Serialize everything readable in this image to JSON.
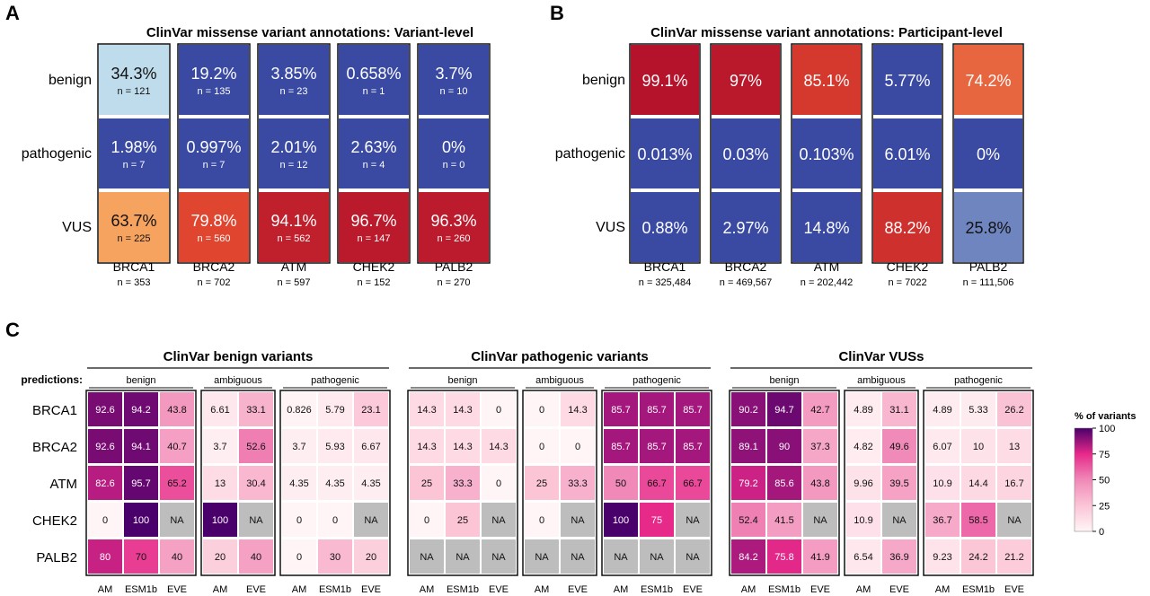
{
  "panel_a": {
    "letter": "A",
    "title": "ClinVar missense variant annotations: Variant-level",
    "rows": [
      "benign",
      "pathogenic",
      "VUS"
    ],
    "genes": [
      {
        "name": "BRCA1",
        "n": "n = 353",
        "cells": [
          {
            "pct": "34.3%",
            "n": "n = 121"
          },
          {
            "pct": "1.98%",
            "n": "n = 7"
          },
          {
            "pct": "63.7%",
            "n": "n = 225"
          }
        ]
      },
      {
        "name": "BRCA2",
        "n": "n = 702",
        "cells": [
          {
            "pct": "19.2%",
            "n": "n = 135"
          },
          {
            "pct": "0.997%",
            "n": "n = 7"
          },
          {
            "pct": "79.8%",
            "n": "n = 560"
          }
        ]
      },
      {
        "name": "ATM",
        "n": "n = 597",
        "cells": [
          {
            "pct": "3.85%",
            "n": "n = 23"
          },
          {
            "pct": "2.01%",
            "n": "n = 12"
          },
          {
            "pct": "94.1%",
            "n": "n = 562"
          }
        ]
      },
      {
        "name": "CHEK2",
        "n": "n = 152",
        "cells": [
          {
            "pct": "0.658%",
            "n": "n = 1"
          },
          {
            "pct": "2.63%",
            "n": "n = 4"
          },
          {
            "pct": "96.7%",
            "n": "n = 147"
          }
        ]
      },
      {
        "name": "PALB2",
        "n": "n = 270",
        "cells": [
          {
            "pct": "3.7%",
            "n": "n = 10"
          },
          {
            "pct": "0%",
            "n": "n = 0"
          },
          {
            "pct": "96.3%",
            "n": "n = 260"
          }
        ]
      }
    ]
  },
  "panel_b": {
    "letter": "B",
    "title": "ClinVar missense variant annotations: Participant-level",
    "rows": [
      "benign",
      "pathogenic",
      "VUS"
    ],
    "genes": [
      {
        "name": "BRCA1",
        "n": "n = 325,484",
        "cells": [
          {
            "pct": "99.1%"
          },
          {
            "pct": "0.013%"
          },
          {
            "pct": "0.88%"
          }
        ]
      },
      {
        "name": "BRCA2",
        "n": "n = 469,567",
        "cells": [
          {
            "pct": "97%"
          },
          {
            "pct": "0.03%"
          },
          {
            "pct": "2.97%"
          }
        ]
      },
      {
        "name": "ATM",
        "n": "n = 202,442",
        "cells": [
          {
            "pct": "85.1%"
          },
          {
            "pct": "0.103%"
          },
          {
            "pct": "14.8%"
          }
        ]
      },
      {
        "name": "CHEK2",
        "n": "n = 7022",
        "cells": [
          {
            "pct": "5.77%"
          },
          {
            "pct": "6.01%"
          },
          {
            "pct": "88.2%"
          }
        ]
      },
      {
        "name": "PALB2",
        "n": "n = 111,506",
        "cells": [
          {
            "pct": "74.2%"
          },
          {
            "pct": "0%"
          },
          {
            "pct": "25.8%"
          }
        ]
      }
    ]
  },
  "panel_c": {
    "letter": "C",
    "predictions_label": "predictions:",
    "genes": [
      "BRCA1",
      "BRCA2",
      "ATM",
      "CHEK2",
      "PALB2"
    ],
    "legend_title": "% of variants",
    "legend_ticks": [
      "100",
      "75",
      "50",
      "25",
      "0"
    ],
    "groups": [
      {
        "title": "ClinVar benign variants",
        "blocks": [
          {
            "label": "benign",
            "cols": [
              "AM",
              "ESM1b",
              "EVE"
            ],
            "values": [
              [
                "92.6",
                "94.2",
                "43.8"
              ],
              [
                "92.6",
                "94.1",
                "40.7"
              ],
              [
                "82.6",
                "95.7",
                "65.2"
              ],
              [
                "0",
                "100",
                "NA"
              ],
              [
                "80",
                "70",
                "40"
              ]
            ]
          },
          {
            "label": "ambiguous",
            "cols": [
              "AM",
              "EVE"
            ],
            "values": [
              [
                "6.61",
                "33.1"
              ],
              [
                "3.7",
                "52.6"
              ],
              [
                "13",
                "30.4"
              ],
              [
                "100",
                "NA"
              ],
              [
                "20",
                "40"
              ]
            ]
          },
          {
            "label": "pathogenic",
            "cols": [
              "AM",
              "ESM1b",
              "EVE"
            ],
            "values": [
              [
                "0.826",
                "5.79",
                "23.1"
              ],
              [
                "3.7",
                "5.93",
                "6.67"
              ],
              [
                "4.35",
                "4.35",
                "4.35"
              ],
              [
                "0",
                "0",
                "NA"
              ],
              [
                "0",
                "30",
                "20"
              ]
            ]
          }
        ]
      },
      {
        "title": "ClinVar pathogenic variants",
        "blocks": [
          {
            "label": "benign",
            "cols": [
              "AM",
              "ESM1b",
              "EVE"
            ],
            "values": [
              [
                "14.3",
                "14.3",
                "0"
              ],
              [
                "14.3",
                "14.3",
                "14.3"
              ],
              [
                "25",
                "33.3",
                "0"
              ],
              [
                "0",
                "25",
                "NA"
              ],
              [
                "NA",
                "NA",
                "NA"
              ]
            ]
          },
          {
            "label": "ambiguous",
            "cols": [
              "AM",
              "EVE"
            ],
            "values": [
              [
                "0",
                "14.3"
              ],
              [
                "0",
                "0"
              ],
              [
                "25",
                "33.3"
              ],
              [
                "0",
                "NA"
              ],
              [
                "NA",
                "NA"
              ]
            ]
          },
          {
            "label": "pathogenic",
            "cols": [
              "AM",
              "ESM1b",
              "EVE"
            ],
            "values": [
              [
                "85.7",
                "85.7",
                "85.7"
              ],
              [
                "85.7",
                "85.7",
                "85.7"
              ],
              [
                "50",
                "66.7",
                "66.7"
              ],
              [
                "100",
                "75",
                "NA"
              ],
              [
                "NA",
                "NA",
                "NA"
              ]
            ]
          }
        ]
      },
      {
        "title": "ClinVar VUSs",
        "blocks": [
          {
            "label": "benign",
            "cols": [
              "AM",
              "ESM1b",
              "EVE"
            ],
            "values": [
              [
                "90.2",
                "94.7",
                "42.7"
              ],
              [
                "89.1",
                "90",
                "37.3"
              ],
              [
                "79.2",
                "85.6",
                "43.8"
              ],
              [
                "52.4",
                "41.5",
                "NA"
              ],
              [
                "84.2",
                "75.8",
                "41.9"
              ]
            ]
          },
          {
            "label": "ambiguous",
            "cols": [
              "AM",
              "EVE"
            ],
            "values": [
              [
                "4.89",
                "31.1"
              ],
              [
                "4.82",
                "49.6"
              ],
              [
                "9.96",
                "39.5"
              ],
              [
                "10.9",
                "NA"
              ],
              [
                "6.54",
                "36.9"
              ]
            ]
          },
          {
            "label": "pathogenic",
            "cols": [
              "AM",
              "ESM1b",
              "EVE"
            ],
            "values": [
              [
                "4.89",
                "5.33",
                "26.2"
              ],
              [
                "6.07",
                "10",
                "13"
              ],
              [
                "10.9",
                "14.4",
                "16.7"
              ],
              [
                "36.7",
                "58.5",
                "NA"
              ],
              [
                "9.23",
                "24.2",
                "21.2"
              ]
            ]
          }
        ]
      }
    ]
  },
  "colors": {
    "low": "#3a4aa3",
    "mid_light": "#c4e3ef",
    "mid_orange": "#fbb86a",
    "high": "#b3112b",
    "heat_low": "#fff5f7",
    "heat_mid": "#e7298a",
    "heat_high": "#4a006a",
    "na": "#bdbdbd"
  }
}
